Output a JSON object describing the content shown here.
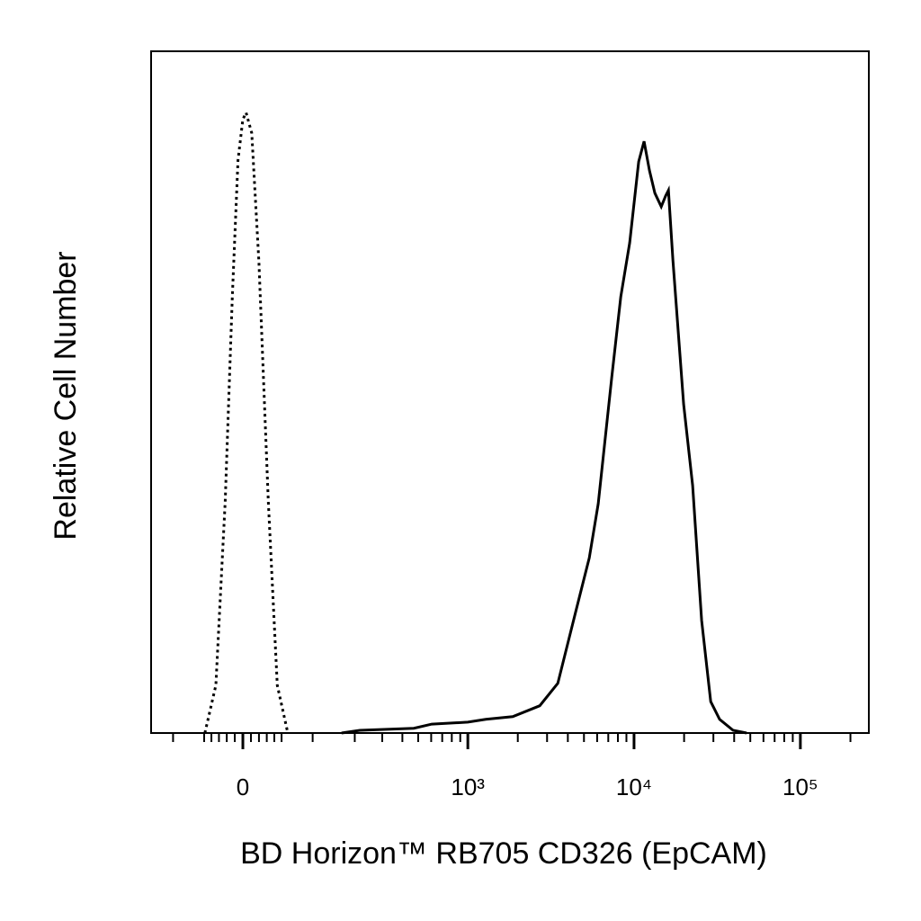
{
  "chart_data": {
    "type": "line",
    "xlabel": "BD Horizon™ RB705 CD326 (EpCAM)",
    "ylabel": "Relative Cell Number",
    "xscale": "biexponential",
    "xlim": [
      -146,
      258000
    ],
    "ylim": [
      0,
      100
    ],
    "xticks": [
      {
        "value": 0,
        "label": "0"
      },
      {
        "value": 1000,
        "label": "10³"
      },
      {
        "value": 10000,
        "label": "10⁴"
      },
      {
        "value": 100000,
        "label": "10⁵"
      }
    ],
    "xminorticks": [
      -100,
      -50,
      -40,
      -30,
      -20,
      -10,
      10,
      20,
      30,
      40,
      50,
      100,
      200,
      300,
      400,
      500,
      600,
      700,
      800,
      900,
      2000,
      3000,
      4000,
      5000,
      6000,
      7000,
      8000,
      9000,
      20000,
      30000,
      40000,
      50000,
      60000,
      70000,
      80000,
      90000,
      200000
    ],
    "series": [
      {
        "color": "#000000",
        "line_style": "dotted",
        "x": [
          -49,
          -34,
          -22,
          -13,
          -6,
          0,
          4,
          11,
          20,
          32,
          44,
          59
        ],
        "values": [
          0,
          7,
          34,
          64,
          84,
          90,
          91,
          88,
          69,
          34,
          7,
          0
        ]
      },
      {
        "color": "#000000",
        "line_style": "solid",
        "x": [
          163,
          216,
          470,
          605,
          1000,
          1283,
          1865,
          2710,
          3480,
          4460,
          5380,
          6090,
          7340,
          8320,
          9420,
          10660,
          11490,
          12390,
          13350,
          14570,
          15500,
          16100,
          17130,
          19880,
          22520,
          25500,
          28900,
          32700,
          39400,
          47500
        ],
        "values": [
          0,
          0.4,
          0.7,
          1.3,
          1.6,
          2.0,
          2.4,
          4.0,
          7.3,
          17.8,
          25.7,
          33.6,
          52.1,
          64.0,
          71.9,
          83.8,
          86.8,
          82.5,
          79.2,
          77.2,
          78.8,
          79.6,
          69.3,
          48.2,
          36.3,
          16.5,
          4.6,
          2.0,
          0.4,
          0
        ]
      }
    ]
  }
}
